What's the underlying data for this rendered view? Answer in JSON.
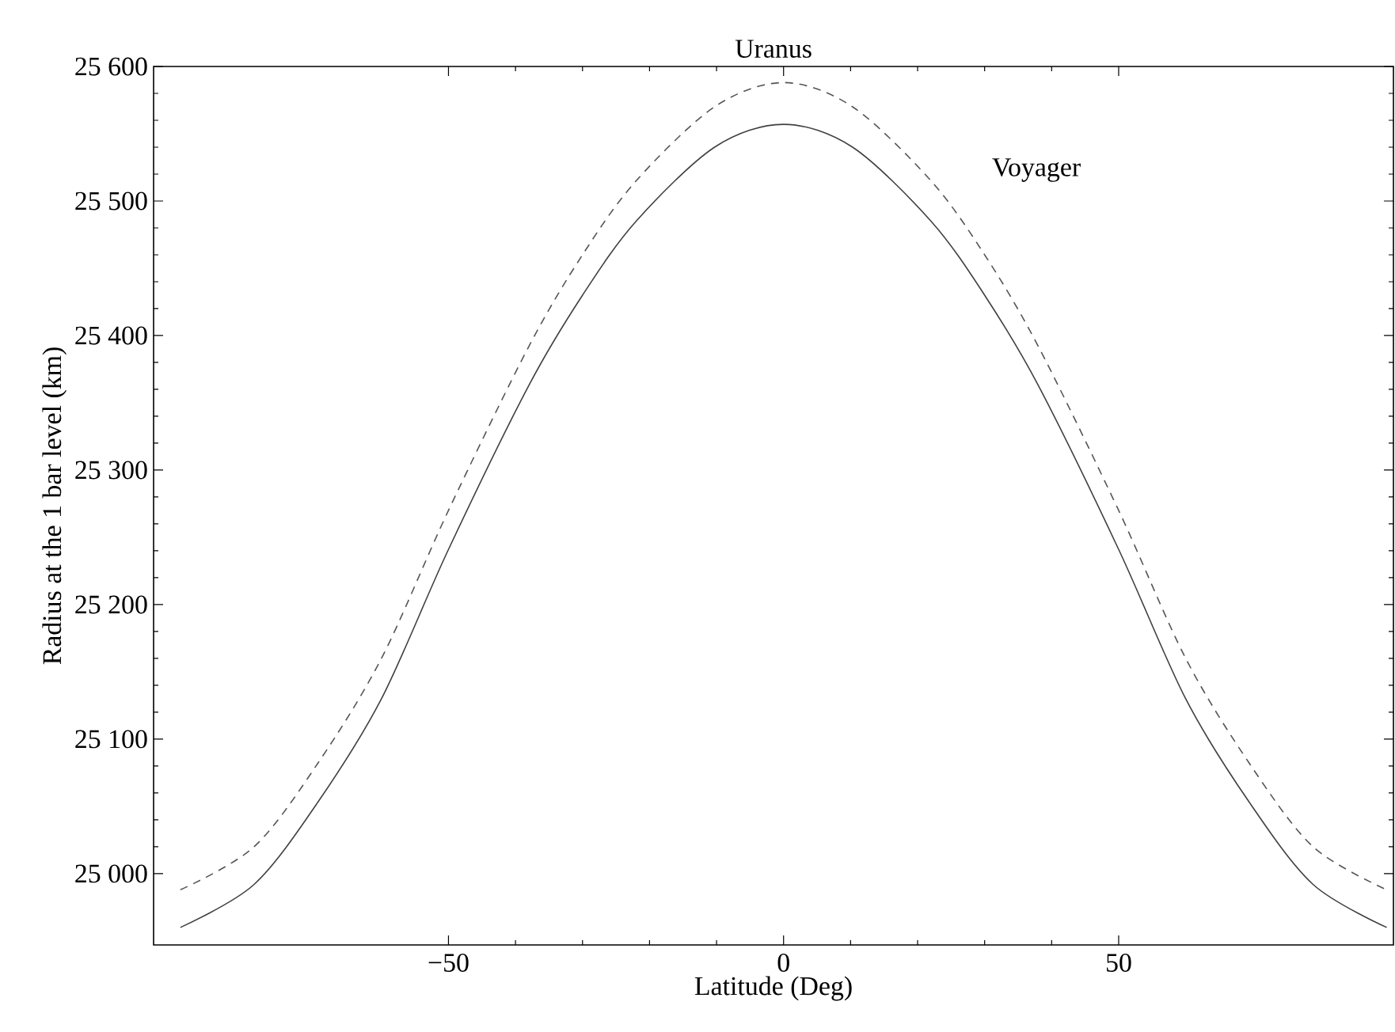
{
  "chart_data": {
    "type": "line",
    "title": "Uranus",
    "xlabel": "Latitude (Deg)",
    "ylabel": "Radius at the 1 bar level (km)",
    "xlim": [
      -94,
      91
    ],
    "ylim": [
      24947,
      25600
    ],
    "xticks": [
      {
        "value": -50,
        "label": "−50"
      },
      0,
      50
    ],
    "yticks": [
      {
        "value": 25000,
        "label": "25 000"
      },
      {
        "value": 25100,
        "label": "25 100"
      },
      {
        "value": 25200,
        "label": "25 200"
      },
      {
        "value": 25300,
        "label": "25 300"
      },
      {
        "value": 25400,
        "label": "25 400"
      },
      {
        "value": 25500,
        "label": "25 500"
      },
      {
        "value": 25600,
        "label": "25 600"
      }
    ],
    "grid": false,
    "marker": "none",
    "annotations": [
      "Voyager"
    ],
    "series": [
      {
        "color": "#404040",
        "line_style": "solid",
        "x": [
          -90,
          -79,
          -69.5,
          -60,
          -50,
          -38,
          -30,
          -22,
          -10.3,
          0,
          10.3,
          22,
          30,
          38,
          50,
          60,
          69.5,
          79,
          90
        ],
        "values": [
          24960,
          24992,
          25053,
          25130,
          25241,
          25363,
          25430,
          25485,
          25540,
          25557,
          25540,
          25485,
          25430,
          25363,
          25241,
          25130,
          25053,
          24992,
          24960
        ]
      },
      {
        "color": "#555555",
        "line_style": "dashed",
        "x": [
          -90,
          -79,
          -69.5,
          -60,
          -50,
          -38,
          -30,
          -22,
          -10.3,
          0,
          10.3,
          22,
          30,
          38,
          50,
          60,
          69.5,
          79,
          90
        ],
        "values": [
          24988,
          25020,
          25082,
          25160,
          25270,
          25392,
          25460,
          25515,
          25570,
          25588,
          25570,
          25515,
          25460,
          25392,
          25270,
          25160,
          25082,
          25020,
          24988
        ]
      }
    ]
  }
}
